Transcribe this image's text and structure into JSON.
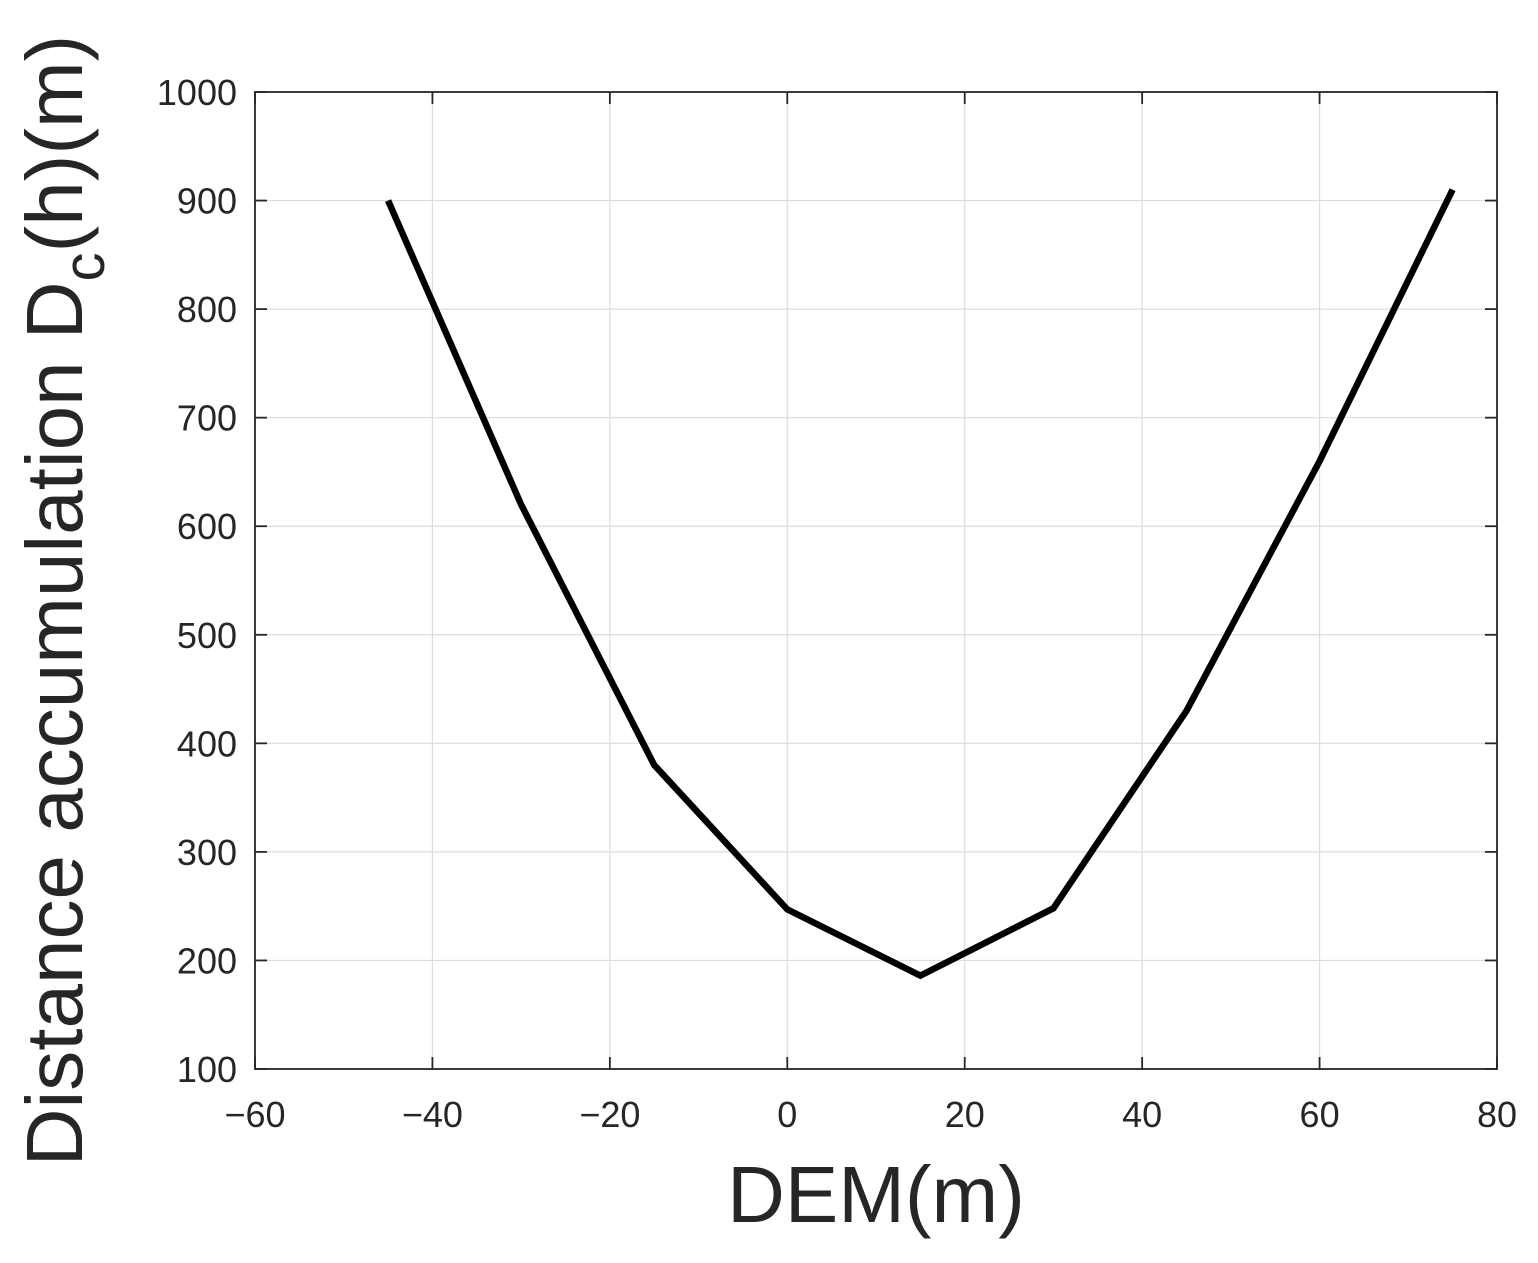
{
  "chart_data": {
    "type": "line",
    "xlabel": "DEM(m)",
    "ylabel": {
      "prefix": "Distance accumulation D",
      "subscript": "c",
      "suffix": "(h)(m)"
    },
    "xlim": [
      -60,
      80
    ],
    "ylim": [
      100,
      1000
    ],
    "xticks": [
      -60,
      -40,
      -20,
      0,
      20,
      40,
      60,
      80
    ],
    "xtick_labels": [
      "−60",
      "−40",
      "−20",
      "0",
      "20",
      "40",
      "60",
      "80"
    ],
    "yticks": [
      100,
      200,
      300,
      400,
      500,
      600,
      700,
      800,
      900,
      1000
    ],
    "ytick_labels": [
      "100",
      "200",
      "300",
      "400",
      "500",
      "600",
      "700",
      "800",
      "900",
      "1000"
    ],
    "grid": true,
    "line_color": "#000000",
    "series": [
      {
        "x": [
          -45,
          -30,
          -15,
          0,
          15,
          30,
          45,
          60,
          75
        ],
        "y": [
          900,
          620,
          380,
          247,
          186,
          248,
          430,
          660,
          910
        ]
      }
    ]
  }
}
